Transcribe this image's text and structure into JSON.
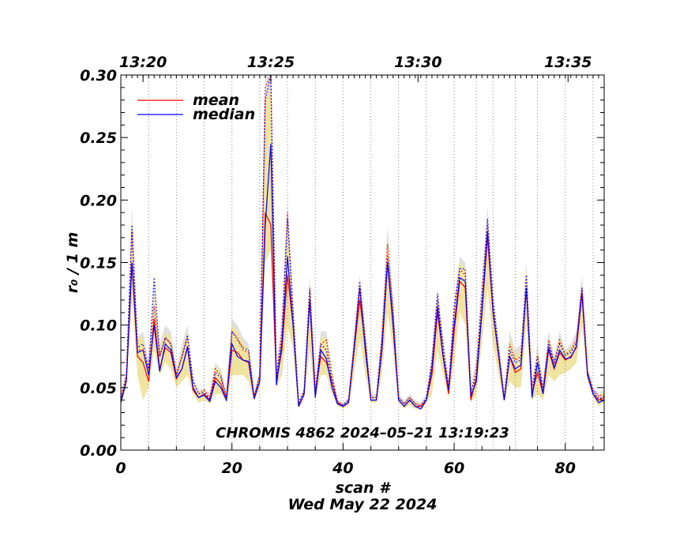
{
  "chart_data": {
    "type": "line",
    "xlabel": "scan #",
    "ylabel": "r₀ / 1 m",
    "date_label": "Wed May 22 2024",
    "annotation": "CHROMIS 4862 2024–05–21 13:19:23",
    "xlim": [
      0,
      87
    ],
    "ylim": [
      0.0,
      0.3
    ],
    "x_ticks": [
      0,
      20,
      40,
      60,
      80
    ],
    "x_tick_labels": [
      "0",
      "20",
      "40",
      "60",
      "80"
    ],
    "y_ticks": [
      0.0,
      0.05,
      0.1,
      0.15,
      0.2,
      0.25,
      0.3
    ],
    "y_tick_labels": [
      "0.00",
      "0.05",
      "0.10",
      "0.15",
      "0.20",
      "0.25",
      "0.30"
    ],
    "top_axis": {
      "ticks": [
        4,
        27,
        53.5,
        80.5
      ],
      "labels": [
        "13:20",
        "13:25",
        "13:30",
        "13:35"
      ]
    },
    "vertical_markers": [
      5,
      10,
      15,
      20,
      25,
      30,
      35,
      40,
      45,
      50,
      55,
      60,
      64,
      67,
      71,
      75,
      80,
      85
    ],
    "legend": {
      "position": "top-left",
      "entries": [
        {
          "name": "mean",
          "color": "#ff0000"
        },
        {
          "name": "median",
          "color": "#0000ff"
        }
      ]
    },
    "grid": false,
    "x": [
      0,
      1,
      2,
      3,
      4,
      5,
      6,
      7,
      8,
      9,
      10,
      11,
      12,
      13,
      14,
      15,
      16,
      17,
      18,
      19,
      20,
      21,
      22,
      23,
      24,
      25,
      26,
      27,
      28,
      29,
      30,
      31,
      32,
      33,
      34,
      35,
      36,
      37,
      38,
      39,
      40,
      41,
      42,
      43,
      44,
      45,
      46,
      47,
      48,
      49,
      50,
      51,
      52,
      53,
      54,
      55,
      56,
      57,
      58,
      59,
      60,
      61,
      62,
      63,
      64,
      65,
      66,
      67,
      68,
      69,
      70,
      71,
      72,
      73,
      74,
      75,
      76,
      77,
      78,
      79,
      80,
      81,
      82,
      83,
      84,
      85,
      86,
      87
    ],
    "series": [
      {
        "name": "mean",
        "color": "#ff0000",
        "style": "solid",
        "values": [
          0.04,
          0.055,
          0.15,
          0.075,
          0.07,
          0.055,
          0.105,
          0.065,
          0.082,
          0.078,
          0.057,
          0.065,
          0.082,
          0.048,
          0.042,
          0.045,
          0.04,
          0.058,
          0.053,
          0.04,
          0.08,
          0.078,
          0.072,
          0.07,
          0.042,
          0.055,
          0.19,
          0.18,
          0.055,
          0.08,
          0.14,
          0.1,
          0.035,
          0.045,
          0.12,
          0.045,
          0.075,
          0.07,
          0.055,
          0.038,
          0.035,
          0.038,
          0.08,
          0.12,
          0.085,
          0.04,
          0.04,
          0.08,
          0.15,
          0.1,
          0.04,
          0.035,
          0.04,
          0.035,
          0.035,
          0.04,
          0.06,
          0.11,
          0.075,
          0.045,
          0.095,
          0.135,
          0.13,
          0.04,
          0.058,
          0.11,
          0.17,
          0.11,
          0.075,
          0.04,
          0.075,
          0.062,
          0.065,
          0.13,
          0.045,
          0.062,
          0.045,
          0.08,
          0.065,
          0.078,
          0.072,
          0.075,
          0.082,
          0.125,
          0.06,
          0.045,
          0.04,
          0.042
        ]
      },
      {
        "name": "median",
        "color": "#0000ff",
        "style": "solid",
        "values": [
          0.038,
          0.055,
          0.15,
          0.078,
          0.08,
          0.06,
          0.1,
          0.063,
          0.085,
          0.08,
          0.058,
          0.065,
          0.083,
          0.05,
          0.042,
          0.044,
          0.039,
          0.055,
          0.05,
          0.04,
          0.085,
          0.075,
          0.072,
          0.071,
          0.041,
          0.055,
          0.18,
          0.245,
          0.052,
          0.085,
          0.155,
          0.1,
          0.035,
          0.045,
          0.12,
          0.042,
          0.08,
          0.073,
          0.05,
          0.037,
          0.035,
          0.038,
          0.08,
          0.13,
          0.08,
          0.04,
          0.04,
          0.08,
          0.15,
          0.1,
          0.04,
          0.035,
          0.04,
          0.035,
          0.033,
          0.04,
          0.065,
          0.115,
          0.075,
          0.048,
          0.1,
          0.138,
          0.135,
          0.043,
          0.055,
          0.11,
          0.175,
          0.11,
          0.077,
          0.04,
          0.075,
          0.065,
          0.068,
          0.13,
          0.042,
          0.07,
          0.045,
          0.082,
          0.066,
          0.08,
          0.073,
          0.074,
          0.083,
          0.125,
          0.06,
          0.045,
          0.038,
          0.04
        ]
      },
      {
        "name": "mean upper",
        "color": "#ff0000",
        "style": "dotted",
        "values": [
          0.042,
          0.06,
          0.175,
          0.08,
          0.08,
          0.065,
          0.115,
          0.075,
          0.09,
          0.085,
          0.06,
          0.075,
          0.09,
          0.055,
          0.045,
          0.048,
          0.042,
          0.065,
          0.06,
          0.042,
          0.095,
          0.09,
          0.08,
          0.078,
          0.043,
          0.06,
          0.29,
          0.3,
          0.06,
          0.095,
          0.19,
          0.11,
          0.037,
          0.048,
          0.13,
          0.048,
          0.085,
          0.088,
          0.06,
          0.039,
          0.036,
          0.04,
          0.085,
          0.13,
          0.09,
          0.042,
          0.042,
          0.09,
          0.165,
          0.11,
          0.042,
          0.037,
          0.042,
          0.037,
          0.036,
          0.042,
          0.07,
          0.12,
          0.085,
          0.05,
          0.11,
          0.145,
          0.14,
          0.045,
          0.065,
          0.125,
          0.18,
          0.115,
          0.08,
          0.042,
          0.085,
          0.072,
          0.075,
          0.14,
          0.05,
          0.075,
          0.05,
          0.088,
          0.07,
          0.088,
          0.076,
          0.08,
          0.088,
          0.13,
          0.063,
          0.048,
          0.043,
          0.045
        ]
      },
      {
        "name": "median upper",
        "color": "#0000ff",
        "style": "dotted",
        "values": [
          0.04,
          0.058,
          0.18,
          0.082,
          0.085,
          0.065,
          0.138,
          0.075,
          0.09,
          0.085,
          0.06,
          0.075,
          0.092,
          0.055,
          0.045,
          0.046,
          0.041,
          0.062,
          0.058,
          0.042,
          0.095,
          0.088,
          0.082,
          0.08,
          0.042,
          0.06,
          0.28,
          0.31,
          0.058,
          0.09,
          0.185,
          0.11,
          0.037,
          0.047,
          0.128,
          0.045,
          0.085,
          0.08,
          0.055,
          0.038,
          0.036,
          0.04,
          0.085,
          0.135,
          0.085,
          0.042,
          0.042,
          0.088,
          0.155,
          0.11,
          0.042,
          0.037,
          0.042,
          0.037,
          0.035,
          0.042,
          0.07,
          0.125,
          0.08,
          0.05,
          0.115,
          0.145,
          0.145,
          0.046,
          0.06,
          0.122,
          0.185,
          0.12,
          0.08,
          0.042,
          0.08,
          0.07,
          0.072,
          0.14,
          0.045,
          0.075,
          0.048,
          0.085,
          0.07,
          0.085,
          0.076,
          0.078,
          0.086,
          0.13,
          0.063,
          0.047,
          0.041,
          0.043
        ]
      }
    ],
    "bands": [
      {
        "name": "grey range",
        "color": "#e0e0e0",
        "low": [
          0.038,
          0.055,
          0.15,
          0.075,
          0.07,
          0.055,
          0.1,
          0.063,
          0.082,
          0.078,
          0.057,
          0.065,
          0.082,
          0.048,
          0.042,
          0.044,
          0.039,
          0.055,
          0.05,
          0.04,
          0.08,
          0.075,
          0.072,
          0.07,
          0.041,
          0.055,
          0.18,
          0.18,
          0.052,
          0.08,
          0.14,
          0.1,
          0.035,
          0.045,
          0.12,
          0.042,
          0.075,
          0.07,
          0.05,
          0.037,
          0.035,
          0.038,
          0.08,
          0.12,
          0.08,
          0.04,
          0.04,
          0.08,
          0.15,
          0.1,
          0.04,
          0.035,
          0.04,
          0.035,
          0.033,
          0.04,
          0.06,
          0.11,
          0.075,
          0.045,
          0.095,
          0.135,
          0.13,
          0.04,
          0.055,
          0.11,
          0.17,
          0.11,
          0.075,
          0.04,
          0.075,
          0.062,
          0.065,
          0.13,
          0.042,
          0.062,
          0.045,
          0.08,
          0.065,
          0.078,
          0.072,
          0.074,
          0.082,
          0.125,
          0.06,
          0.045,
          0.038,
          0.04
        ],
        "high": [
          0.045,
          0.065,
          0.195,
          0.09,
          0.095,
          0.07,
          0.14,
          0.085,
          0.1,
          0.095,
          0.065,
          0.085,
          0.1,
          0.06,
          0.048,
          0.05,
          0.045,
          0.07,
          0.065,
          0.045,
          0.105,
          0.1,
          0.09,
          0.085,
          0.045,
          0.065,
          0.3,
          0.3,
          0.065,
          0.11,
          0.2,
          0.12,
          0.04,
          0.05,
          0.14,
          0.05,
          0.095,
          0.095,
          0.065,
          0.04,
          0.038,
          0.042,
          0.09,
          0.14,
          0.095,
          0.045,
          0.045,
          0.1,
          0.18,
          0.12,
          0.045,
          0.04,
          0.045,
          0.04,
          0.038,
          0.045,
          0.08,
          0.13,
          0.09,
          0.055,
          0.12,
          0.155,
          0.15,
          0.05,
          0.075,
          0.14,
          0.195,
          0.125,
          0.09,
          0.045,
          0.095,
          0.08,
          0.085,
          0.15,
          0.055,
          0.085,
          0.055,
          0.095,
          0.075,
          0.095,
          0.08,
          0.085,
          0.095,
          0.14,
          0.065,
          0.05,
          0.045,
          0.05
        ]
      },
      {
        "name": "yellow range",
        "color": "#efe4a0",
        "low": [
          0.038,
          0.05,
          0.12,
          0.06,
          0.04,
          0.05,
          0.08,
          0.06,
          0.07,
          0.065,
          0.05,
          0.055,
          0.06,
          0.045,
          0.038,
          0.04,
          0.037,
          0.045,
          0.045,
          0.038,
          0.06,
          0.06,
          0.06,
          0.055,
          0.04,
          0.05,
          0.15,
          0.16,
          0.05,
          0.06,
          0.1,
          0.08,
          0.033,
          0.04,
          0.08,
          0.04,
          0.06,
          0.06,
          0.045,
          0.035,
          0.033,
          0.036,
          0.06,
          0.09,
          0.06,
          0.038,
          0.038,
          0.06,
          0.11,
          0.08,
          0.038,
          0.033,
          0.036,
          0.033,
          0.032,
          0.038,
          0.045,
          0.08,
          0.06,
          0.042,
          0.07,
          0.11,
          0.1,
          0.038,
          0.045,
          0.085,
          0.13,
          0.085,
          0.06,
          0.038,
          0.055,
          0.05,
          0.05,
          0.1,
          0.04,
          0.045,
          0.04,
          0.06,
          0.055,
          0.06,
          0.062,
          0.065,
          0.07,
          0.1,
          0.055,
          0.042,
          0.035,
          0.038
        ],
        "high": [
          0.045,
          0.062,
          0.17,
          0.09,
          0.09,
          0.065,
          0.125,
          0.08,
          0.095,
          0.09,
          0.062,
          0.08,
          0.095,
          0.058,
          0.046,
          0.048,
          0.043,
          0.068,
          0.062,
          0.043,
          0.1,
          0.095,
          0.085,
          0.082,
          0.044,
          0.062,
          0.28,
          0.29,
          0.062,
          0.1,
          0.185,
          0.115,
          0.038,
          0.048,
          0.135,
          0.048,
          0.09,
          0.09,
          0.062,
          0.039,
          0.037,
          0.041,
          0.088,
          0.135,
          0.09,
          0.043,
          0.043,
          0.095,
          0.17,
          0.115,
          0.043,
          0.038,
          0.043,
          0.038,
          0.037,
          0.043,
          0.075,
          0.125,
          0.085,
          0.052,
          0.115,
          0.15,
          0.145,
          0.048,
          0.07,
          0.13,
          0.185,
          0.12,
          0.085,
          0.043,
          0.09,
          0.075,
          0.08,
          0.145,
          0.052,
          0.08,
          0.052,
          0.09,
          0.072,
          0.09,
          0.078,
          0.082,
          0.09,
          0.135,
          0.063,
          0.048,
          0.043,
          0.047
        ]
      }
    ]
  }
}
